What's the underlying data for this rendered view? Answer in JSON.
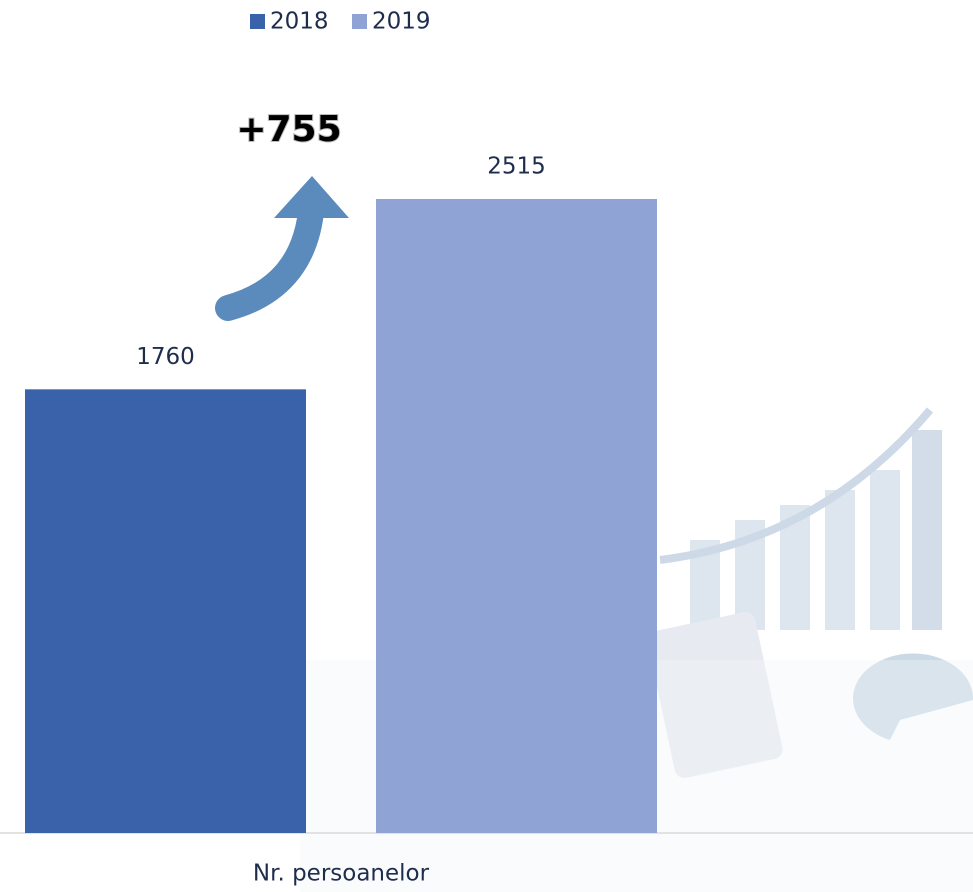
{
  "chart_data": {
    "type": "bar",
    "categories": [
      "Nr. persoanelor"
    ],
    "series": [
      {
        "name": "2018",
        "color": "#3a62aa",
        "values": [
          1760
        ]
      },
      {
        "name": "2019",
        "color": "#8fa3d4",
        "values": [
          2515
        ]
      }
    ],
    "annotation": "+755",
    "legend": "top"
  }
}
